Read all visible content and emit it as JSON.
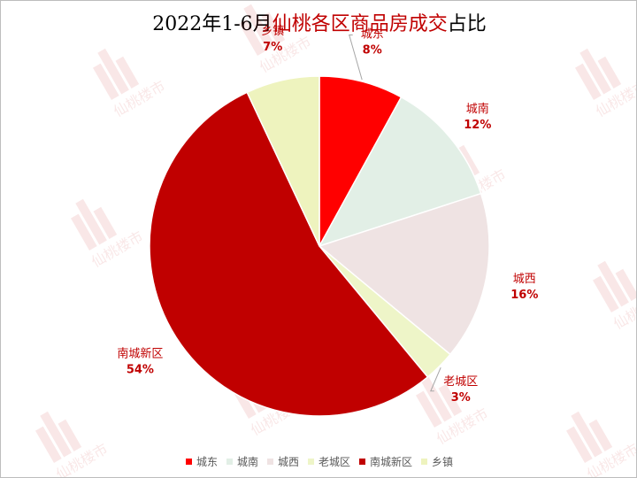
{
  "title": {
    "part1": "2022年1-6月",
    "part2": "仙桃各区商品房成交",
    "part3": "占比"
  },
  "watermark": {
    "text": "仙桃楼市",
    "icon": "building-logo-icon"
  },
  "chart_data": {
    "type": "pie",
    "title": "2022年1-6月仙桃各区商品房成交占比",
    "categories": [
      "城东",
      "城南",
      "城西",
      "老城区",
      "南城新区",
      "乡镇"
    ],
    "values": [
      8,
      12,
      16,
      3,
      54,
      7
    ],
    "value_unit": "%",
    "data_labels": [
      "8%",
      "12%",
      "16%",
      "3%",
      "54%",
      "7%"
    ],
    "colors": [
      "#ff0000",
      "#e2efe6",
      "#efe3e3",
      "#eef5c8",
      "#c00000",
      "#eef3be"
    ],
    "label_color": "#c00000",
    "start_angle_deg": 0,
    "direction": "clockwise",
    "legend_position": "bottom"
  }
}
